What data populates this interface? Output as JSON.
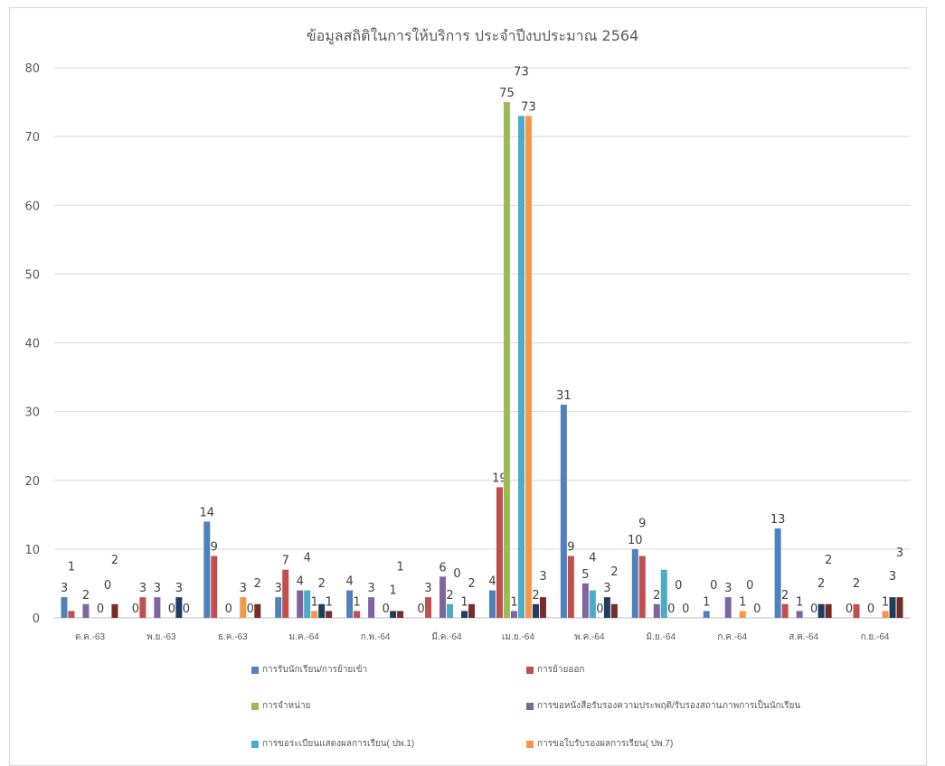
{
  "chart_data": {
    "type": "bar",
    "title": "ข้อมูลสถิติในการให้บริการ ประจำปีงบประมาณ 2564",
    "xlabel": "",
    "ylabel": "",
    "ylim": [
      0,
      80
    ],
    "yticks": [
      "0",
      "10",
      "20",
      "30",
      "40",
      "50",
      "60",
      "70",
      "80"
    ],
    "grid": true,
    "legend_position": "bottom",
    "categories": [
      "ต.ค.-63",
      "พ.ย.-63",
      "ธ.ค.-63",
      "ม.ค.-64",
      "ก.พ.-64",
      "มี.ค.-64",
      "เม.ย.-64",
      "พ.ค.-64",
      "มิ.ย.-64",
      "ก.ค.-64",
      "ส.ค.-64",
      "ก.ย.-64"
    ],
    "series": [
      {
        "name": "การรับนักเรียน/การย้ายเข้า",
        "color": "#4f81bd",
        "values": [
          3,
          0,
          14,
          3,
          4,
          0,
          4,
          31,
          10,
          1,
          13,
          0
        ]
      },
      {
        "name": "การย้ายออก",
        "color": "#c0504d",
        "values": [
          1,
          3,
          9,
          7,
          1,
          3,
          19,
          9,
          9,
          0,
          2,
          2
        ]
      },
      {
        "name": "การจำหน่าย",
        "color": "#9bbb59",
        "values": [
          null,
          null,
          null,
          null,
          null,
          null,
          75,
          null,
          null,
          null,
          null,
          null
        ]
      },
      {
        "name": "การขอหนังสือรับรองความประพฤติ/รับรองสถานภาพการเป็นนักเรียน",
        "color": "#8064a2",
        "values": [
          2,
          3,
          0,
          4,
          3,
          6,
          1,
          5,
          2,
          3,
          1,
          0
        ]
      },
      {
        "name": "การขอระเบียนแสดงผลการเรียน( ปพ.1)",
        "color": "#4bacc6",
        "values": [
          null,
          null,
          null,
          4,
          null,
          2,
          73,
          4,
          7,
          null,
          null,
          null
        ]
      },
      {
        "name": "การขอใบรับรองผลการเรียน( ปพ.7)",
        "color": "#f79646",
        "values": [
          0,
          0,
          3,
          1,
          0,
          0,
          73,
          0,
          0,
          1,
          0,
          1
        ]
      },
      {
        "name": "",
        "color": "#1f3d63",
        "values": [
          0,
          3,
          0,
          2,
          1,
          1,
          2,
          3,
          0,
          0,
          2,
          3
        ]
      },
      {
        "name": "",
        "color": "#772c2a",
        "values": [
          2,
          0,
          2,
          1,
          1,
          2,
          3,
          2,
          0,
          0,
          2,
          3
        ]
      }
    ]
  }
}
